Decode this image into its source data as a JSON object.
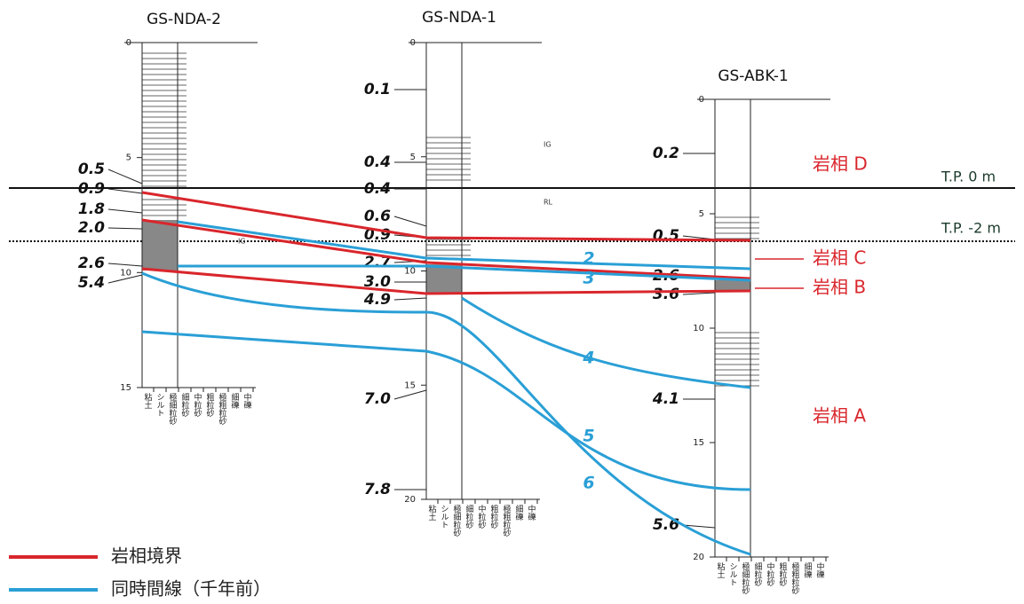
{
  "columns": [
    {
      "name": "GS-NDA-2",
      "depth_ticks": [
        "0",
        "5",
        "10",
        "15"
      ],
      "ages": [
        "0.5",
        "0.9",
        "1.8",
        "2.0",
        "2.6",
        "5.4"
      ],
      "annotations": [
        "IG"
      ]
    },
    {
      "name": "GS-NDA-1",
      "depth_ticks": [
        "0",
        "5",
        "10",
        "15",
        "20"
      ],
      "ages": [
        "0.1",
        "0.4",
        "0.4",
        "0.6",
        "0.9",
        "2.7",
        "3.0",
        "4.9",
        "7.0",
        "7.8"
      ],
      "annotations": [
        "IG",
        "RL"
      ]
    },
    {
      "name": "GS-ABK-1",
      "depth_ticks": [
        "0",
        "5",
        "10",
        "15",
        "20"
      ],
      "ages": [
        "0.2",
        "0.5",
        "2.6",
        "3.6",
        "4.1",
        "5.6"
      ],
      "annotations": []
    }
  ],
  "grain_sizes": [
    "粘土",
    "シルト",
    "極細粒砂",
    "細粒砂",
    "中粒砂",
    "粗粒砂",
    "極粗粒砂",
    "細礫",
    "中礫"
  ],
  "facies": [
    "岩相 D",
    "岩相 C",
    "岩相 B",
    "岩相 A"
  ],
  "datum_lines": [
    "T.P. 0 m",
    "T.P. -2 m"
  ],
  "isochron_labels": [
    "2",
    "3",
    "4",
    "5",
    "6"
  ],
  "legend": [
    "岩相境界",
    "同時間線（千年前）"
  ]
}
